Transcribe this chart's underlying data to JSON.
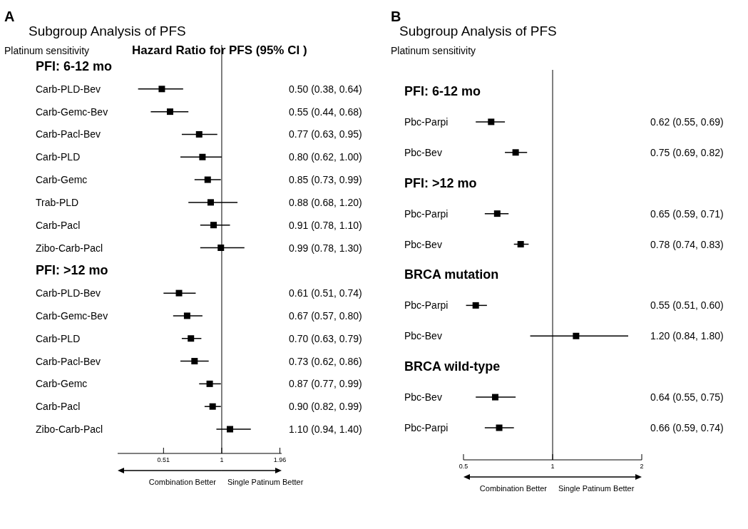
{
  "chart_data": [
    {
      "type": "scatter",
      "orientation": "horizontal",
      "title": "Subgroup Analysis of PFS",
      "subtitle": "Platinum sensitivity",
      "annotations": [
        "A",
        "Combination Better",
        "Single Patinum Better",
        "Hazard Ratio for PFS (95% CI )"
      ],
      "log": "x",
      "marker": "square",
      "color": "#000000",
      "xlim": [
        0.3,
        2.0
      ],
      "xticks": [
        0.51,
        1,
        1.96
      ],
      "ref_lines": [
        {
          "axis": "x",
          "value": 1
        }
      ],
      "categories": [
        "PFI: 6-12 mo",
        "Carb-PLD-Bev",
        "Carb-Gemc-Bev",
        "Carb-Pacl-Bev",
        "Carb-PLD",
        "Carb-Gemc",
        "Trab-PLD",
        "Carb-Pacl",
        "Zibo-Carb-Pacl",
        "PFI:  >12 mo",
        "Carb-PLD-Bev",
        "Carb-Gemc-Bev",
        "Carb-PLD",
        "Carb-Pacl-Bev",
        "Carb-Gemc",
        "Carb-Pacl",
        "Zibo-Carb-Pacl"
      ],
      "values": [
        null,
        0.5,
        0.55,
        0.77,
        0.8,
        0.85,
        0.88,
        0.91,
        0.99,
        null,
        0.61,
        0.67,
        0.7,
        0.73,
        0.87,
        0.9,
        1.1
      ],
      "errors": [
        null,
        [
          0.38,
          0.64
        ],
        [
          0.44,
          0.68
        ],
        [
          0.63,
          0.95
        ],
        [
          0.62,
          1.0
        ],
        [
          0.73,
          0.99
        ],
        [
          0.68,
          1.2
        ],
        [
          0.78,
          1.1
        ],
        [
          0.78,
          1.3
        ],
        null,
        [
          0.51,
          0.74
        ],
        [
          0.57,
          0.8
        ],
        [
          0.63,
          0.79
        ],
        [
          0.62,
          0.86
        ],
        [
          0.77,
          0.99
        ],
        [
          0.82,
          0.99
        ],
        [
          0.94,
          1.4
        ]
      ],
      "value_labels": [
        null,
        "0.50 (0.38, 0.64)",
        "0.55 (0.44, 0.68)",
        "0.77 (0.63, 0.95)",
        "0.80 (0.62, 1.00)",
        "0.85 (0.73, 0.99)",
        "0.88 (0.68, 1.20)",
        "0.91 (0.78, 1.10)",
        "0.99 (0.78, 1.30)",
        null,
        "0.61 (0.51, 0.74)",
        "0.67 (0.57, 0.80)",
        "0.70 (0.63, 0.79)",
        "0.73 (0.62, 0.86)",
        "0.87 (0.77, 0.99)",
        "0.90 (0.82, 0.99)",
        "1.10 (0.94, 1.40)"
      ]
    },
    {
      "type": "scatter",
      "orientation": "horizontal",
      "title": "Subgroup Analysis of PFS",
      "subtitle": "Platinum sensitivity",
      "annotations": [
        "B",
        "Combination Better",
        "Single Patinum Better"
      ],
      "log": "x",
      "marker": "square",
      "color": "#000000",
      "xlim": [
        0.5,
        2
      ],
      "xticks": [
        0.5,
        1,
        2
      ],
      "ref_lines": [
        {
          "axis": "x",
          "value": 1
        }
      ],
      "categories": [
        "PFI: 6-12 mo",
        "Pbc-Parpi",
        "Pbc-Bev",
        "PFI: >12 mo",
        "Pbc-Parpi",
        "Pbc-Bev",
        "BRCA mutation",
        "Pbc-Parpi",
        "Pbc-Bev",
        "BRCA wild-type",
        "Pbc-Bev",
        "Pbc-Parpi"
      ],
      "values": [
        null,
        0.62,
        0.75,
        null,
        0.65,
        0.78,
        null,
        0.55,
        1.2,
        null,
        0.64,
        0.66
      ],
      "errors": [
        null,
        [
          0.55,
          0.69
        ],
        [
          0.69,
          0.82
        ],
        null,
        [
          0.59,
          0.71
        ],
        [
          0.74,
          0.83
        ],
        null,
        [
          0.51,
          0.6
        ],
        [
          0.84,
          1.8
        ],
        null,
        [
          0.55,
          0.75
        ],
        [
          0.59,
          0.74
        ]
      ],
      "value_labels": [
        null,
        "0.62 (0.55, 0.69)",
        "0.75 (0.69, 0.82)",
        null,
        "0.65 (0.59, 0.71)",
        "0.78 (0.74, 0.83)",
        null,
        "0.55 (0.51, 0.60)",
        "1.20 (0.84, 1.80)",
        null,
        "0.64 (0.55, 0.75)",
        "0.66 (0.59, 0.74)"
      ]
    }
  ]
}
